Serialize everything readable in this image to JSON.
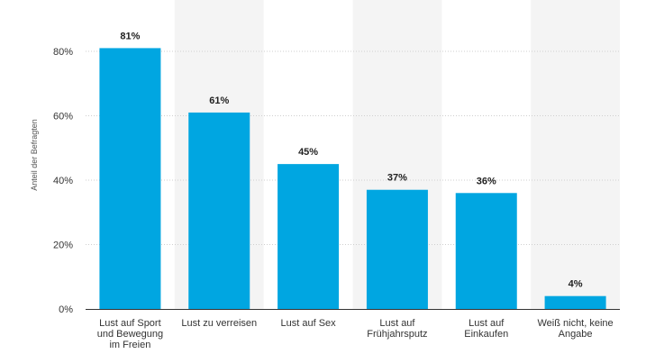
{
  "chart_data": {
    "type": "bar",
    "ylabel": "Anteil der Befragten",
    "xlabel": "",
    "ylim": [
      0,
      80
    ],
    "y_ticks": [
      0,
      20,
      40,
      60,
      80
    ],
    "y_tick_labels": [
      "0%",
      "20%",
      "40%",
      "60%",
      "80%"
    ],
    "categories": [
      "Lust auf Sport und Bewegung im Freien",
      "Lust zu verreisen",
      "Lust auf Sex",
      "Lust auf Frühjahrsputz",
      "Lust auf Einkaufen",
      "Weiß nicht, keine Angabe"
    ],
    "category_lines": [
      [
        "Lust auf Sport",
        "und Bewegung",
        "im Freien"
      ],
      [
        "Lust zu verreisen"
      ],
      [
        "Lust auf Sex"
      ],
      [
        "Lust auf",
        "Frühjahrsputz"
      ],
      [
        "Lust auf",
        "Einkaufen"
      ],
      [
        "Weiß nicht, keine",
        "Angabe"
      ]
    ],
    "values": [
      81,
      61,
      45,
      37,
      36,
      4
    ],
    "value_labels": [
      "81%",
      "61%",
      "45%",
      "37%",
      "36%",
      "4%"
    ],
    "grid": true,
    "legend": "none"
  },
  "colors": {
    "bar": "#00a6e1",
    "band_alt": "#f4f4f4",
    "grid": "#cfcfcf",
    "axis": "#333333"
  }
}
